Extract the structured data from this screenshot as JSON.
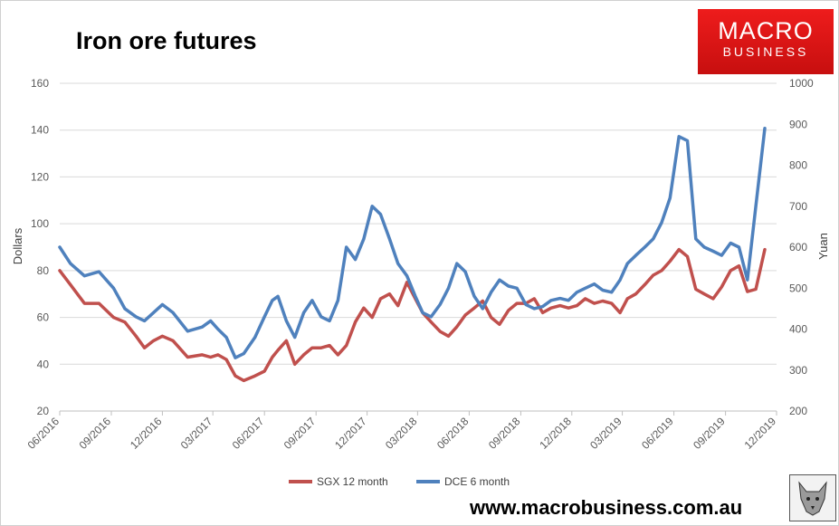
{
  "header": {
    "title": "Iron ore futures",
    "brand_line1": "MACRO",
    "brand_line2": "BUSINESS",
    "website": "www.macrobusiness.com.au"
  },
  "colors": {
    "sgx": "#c0504d",
    "dce": "#4f81bd",
    "grid": "#d9d9d9",
    "brand": "#e41b1b"
  },
  "chart_data": {
    "type": "line",
    "title": "Iron ore futures",
    "xlabel": "",
    "ylabel": "Dollars",
    "y2label": "Yuan",
    "ylim": [
      20,
      160
    ],
    "y2lim": [
      200,
      1000
    ],
    "xlim": [
      "2016-06-01",
      "2019-12-01"
    ],
    "yticks": [
      "20",
      "40",
      "60",
      "80",
      "100",
      "120",
      "140",
      "160"
    ],
    "y2ticks": [
      "200",
      "300",
      "400",
      "500",
      "600",
      "700",
      "800",
      "900",
      "1000"
    ],
    "xticks": [
      "06/2016",
      "09/2016",
      "12/2016",
      "03/2017",
      "06/2017",
      "09/2017",
      "12/2017",
      "03/2018",
      "06/2018",
      "09/2018",
      "12/2018",
      "03/2019",
      "06/2019",
      "09/2019",
      "12/2019"
    ],
    "grid": true,
    "legend_position": "bottom",
    "series": [
      {
        "name": "SGX 12 month",
        "axis": "left",
        "x": [
          "2016-06-01",
          "2016-06-20",
          "2016-07-15",
          "2016-08-10",
          "2016-09-05",
          "2016-09-25",
          "2016-10-15",
          "2016-10-30",
          "2016-11-15",
          "2016-12-01",
          "2016-12-20",
          "2017-01-15",
          "2017-02-10",
          "2017-02-25",
          "2017-03-10",
          "2017-03-25",
          "2017-04-10",
          "2017-04-25",
          "2017-05-15",
          "2017-06-01",
          "2017-06-15",
          "2017-06-25",
          "2017-07-10",
          "2017-07-25",
          "2017-08-10",
          "2017-08-25",
          "2017-09-10",
          "2017-09-25",
          "2017-10-10",
          "2017-10-25",
          "2017-11-10",
          "2017-11-25",
          "2017-12-10",
          "2017-12-25",
          "2018-01-10",
          "2018-01-25",
          "2018-02-10",
          "2018-02-25",
          "2018-03-10",
          "2018-03-25",
          "2018-04-10",
          "2018-04-25",
          "2018-05-10",
          "2018-05-25",
          "2018-06-10",
          "2018-06-25",
          "2018-07-10",
          "2018-07-25",
          "2018-08-10",
          "2018-08-25",
          "2018-09-10",
          "2018-09-25",
          "2018-10-10",
          "2018-10-25",
          "2018-11-10",
          "2018-11-25",
          "2018-12-10",
          "2018-12-25",
          "2019-01-10",
          "2019-01-25",
          "2019-02-10",
          "2019-02-25",
          "2019-03-10",
          "2019-03-25",
          "2019-04-10",
          "2019-04-25",
          "2019-05-10",
          "2019-05-25",
          "2019-06-10",
          "2019-06-25",
          "2019-07-10",
          "2019-07-25",
          "2019-08-10",
          "2019-08-25",
          "2019-09-10",
          "2019-09-25",
          "2019-10-10",
          "2019-10-25",
          "2019-11-10"
        ],
        "values": [
          80,
          74,
          66,
          66,
          60,
          58,
          52,
          47,
          50,
          52,
          50,
          43,
          44,
          43,
          44,
          42,
          35,
          33,
          35,
          37,
          43,
          46,
          50,
          40,
          44,
          47,
          47,
          48,
          44,
          48,
          58,
          64,
          60,
          68,
          70,
          65,
          75,
          68,
          62,
          58,
          54,
          52,
          56,
          61,
          64,
          67,
          60,
          57,
          63,
          66,
          66,
          68,
          62,
          64,
          65,
          64,
          65,
          68,
          66,
          67,
          66,
          62,
          68,
          70,
          74,
          78,
          80,
          84,
          89,
          86,
          72,
          70,
          68,
          73,
          80,
          82,
          71,
          72,
          89
        ]
      },
      {
        "name": "DCE 6 month",
        "axis": "right",
        "x": [
          "2016-06-01",
          "2016-06-20",
          "2016-07-15",
          "2016-08-10",
          "2016-09-05",
          "2016-09-25",
          "2016-10-15",
          "2016-10-30",
          "2016-11-15",
          "2016-12-01",
          "2016-12-20",
          "2017-01-15",
          "2017-02-10",
          "2017-02-25",
          "2017-03-10",
          "2017-03-25",
          "2017-04-10",
          "2017-04-25",
          "2017-05-15",
          "2017-06-01",
          "2017-06-15",
          "2017-06-25",
          "2017-07-10",
          "2017-07-25",
          "2017-08-10",
          "2017-08-25",
          "2017-09-10",
          "2017-09-25",
          "2017-10-10",
          "2017-10-25",
          "2017-11-10",
          "2017-11-25",
          "2017-12-10",
          "2017-12-25",
          "2018-01-10",
          "2018-01-25",
          "2018-02-10",
          "2018-02-25",
          "2018-03-10",
          "2018-03-25",
          "2018-04-10",
          "2018-04-25",
          "2018-05-10",
          "2018-05-25",
          "2018-06-10",
          "2018-06-25",
          "2018-07-10",
          "2018-07-25",
          "2018-08-10",
          "2018-08-25",
          "2018-09-10",
          "2018-09-25",
          "2018-10-10",
          "2018-10-25",
          "2018-11-10",
          "2018-11-25",
          "2018-12-10",
          "2018-12-25",
          "2019-01-10",
          "2019-01-25",
          "2019-02-10",
          "2019-02-25",
          "2019-03-10",
          "2019-03-25",
          "2019-04-10",
          "2019-04-25",
          "2019-05-10",
          "2019-05-25",
          "2019-06-10",
          "2019-06-25",
          "2019-07-10",
          "2019-07-25",
          "2019-08-10",
          "2019-08-25",
          "2019-09-10",
          "2019-09-25",
          "2019-10-10",
          "2019-10-25",
          "2019-11-10"
        ],
        "values": [
          600,
          560,
          530,
          540,
          500,
          450,
          430,
          420,
          440,
          460,
          440,
          395,
          405,
          420,
          400,
          380,
          330,
          340,
          380,
          430,
          470,
          480,
          420,
          380,
          440,
          470,
          430,
          420,
          470,
          600,
          570,
          620,
          700,
          680,
          620,
          560,
          530,
          480,
          440,
          430,
          460,
          500,
          560,
          540,
          480,
          450,
          490,
          520,
          505,
          500,
          460,
          450,
          455,
          470,
          475,
          470,
          490,
          500,
          510,
          495,
          490,
          520,
          560,
          580,
          600,
          620,
          660,
          720,
          870,
          860,
          620,
          600,
          590,
          580,
          610,
          600,
          520,
          700,
          890
        ]
      }
    ]
  }
}
